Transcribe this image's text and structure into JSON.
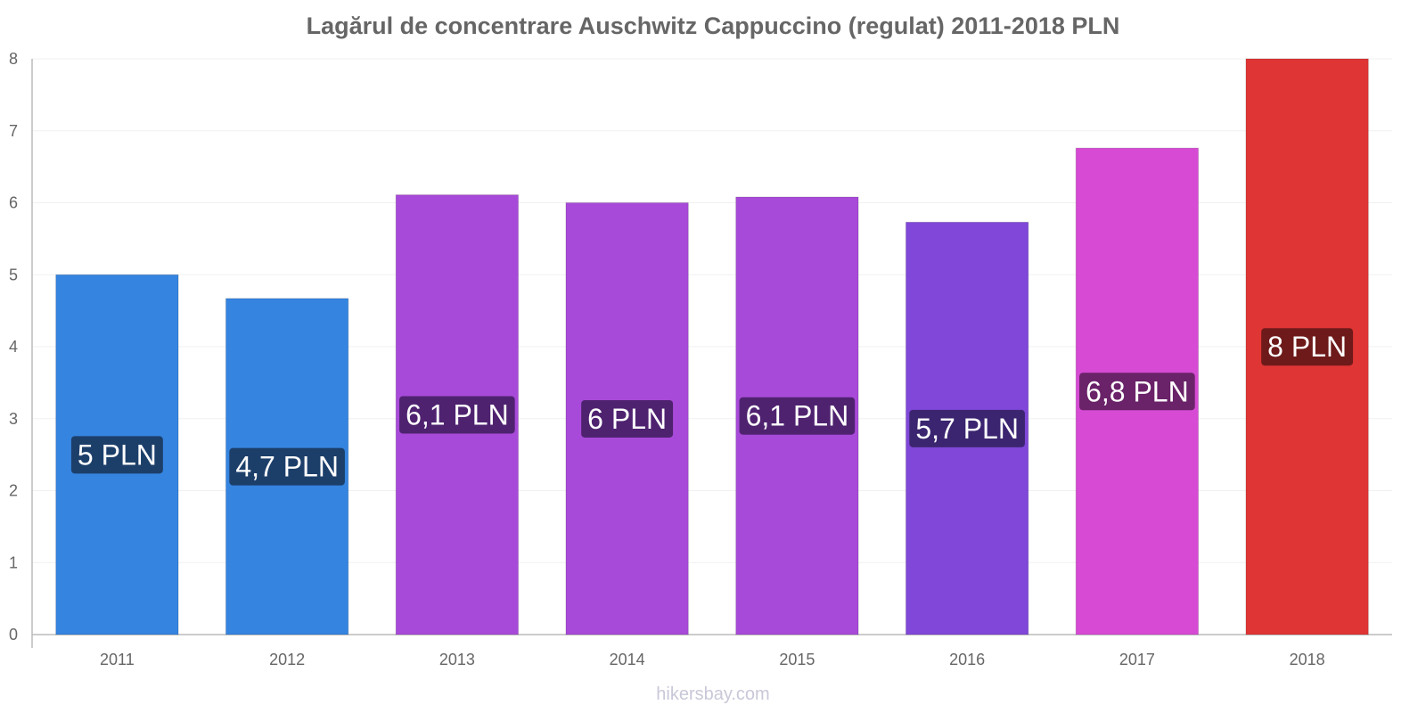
{
  "chart_data": {
    "type": "bar",
    "title": "Lagărul de concentrare Auschwitz Cappuccino (regulat) 2011-2018 PLN",
    "xlabel": "",
    "ylabel": "",
    "categories": [
      "2011",
      "2012",
      "2013",
      "2014",
      "2015",
      "2016",
      "2017",
      "2018"
    ],
    "values": [
      5.0,
      4.67,
      6.11,
      6.0,
      6.08,
      5.73,
      6.76,
      8.0
    ],
    "data_labels": [
      "5 PLN",
      "4,7 PLN",
      "6,1 PLN",
      "6 PLN",
      "6,1 PLN",
      "5,7 PLN",
      "6,8 PLN",
      "8 PLN"
    ],
    "bar_colors": [
      "#3584e0",
      "#3584e0",
      "#a84ad9",
      "#a84ad9",
      "#a84ad9",
      "#8047d9",
      "#d64ad4",
      "#e03535"
    ],
    "label_colors": [
      "#1c3f6a",
      "#1c3f6a",
      "#4f2270",
      "#4f2270",
      "#4f2270",
      "#3b2570",
      "#6a2268",
      "#6e1a1a"
    ],
    "yticks": [
      "0",
      "1",
      "2",
      "3",
      "4",
      "5",
      "6",
      "7",
      "8"
    ],
    "ylim": [
      0,
      8
    ],
    "grid": true,
    "legend": "none"
  },
  "watermark": "hikersbay.com"
}
